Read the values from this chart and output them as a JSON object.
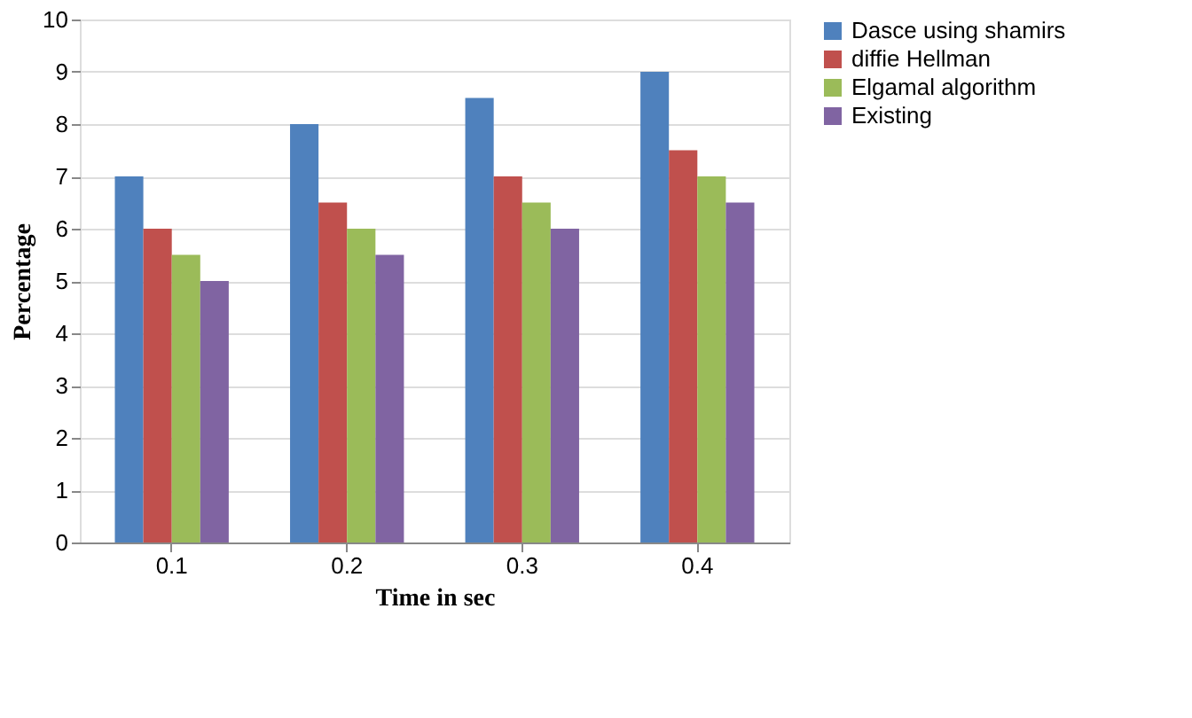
{
  "chart_data": {
    "type": "bar",
    "xlabel": "Time in sec",
    "ylabel": "Percentage",
    "categories": [
      "0.1",
      "0.2",
      "0.3",
      "0.4"
    ],
    "series": [
      {
        "name": "Dasce using shamirs",
        "color": "#4f81bd",
        "values": [
          7,
          8,
          8.5,
          9
        ]
      },
      {
        "name": "diffie Hellman",
        "color": "#c0504d",
        "values": [
          6,
          6.5,
          7,
          7.5
        ]
      },
      {
        "name": "Elgamal algorithm",
        "color": "#9bbb59",
        "values": [
          5.5,
          6,
          6.5,
          7
        ]
      },
      {
        "name": "Existing",
        "color": "#8064a2",
        "values": [
          5,
          5.5,
          6,
          6.5
        ]
      }
    ],
    "ylim": [
      0,
      10
    ],
    "yticks": [
      0,
      1,
      2,
      3,
      4,
      5,
      6,
      7,
      8,
      9,
      10
    ],
    "grid": "y",
    "legend": "right"
  }
}
